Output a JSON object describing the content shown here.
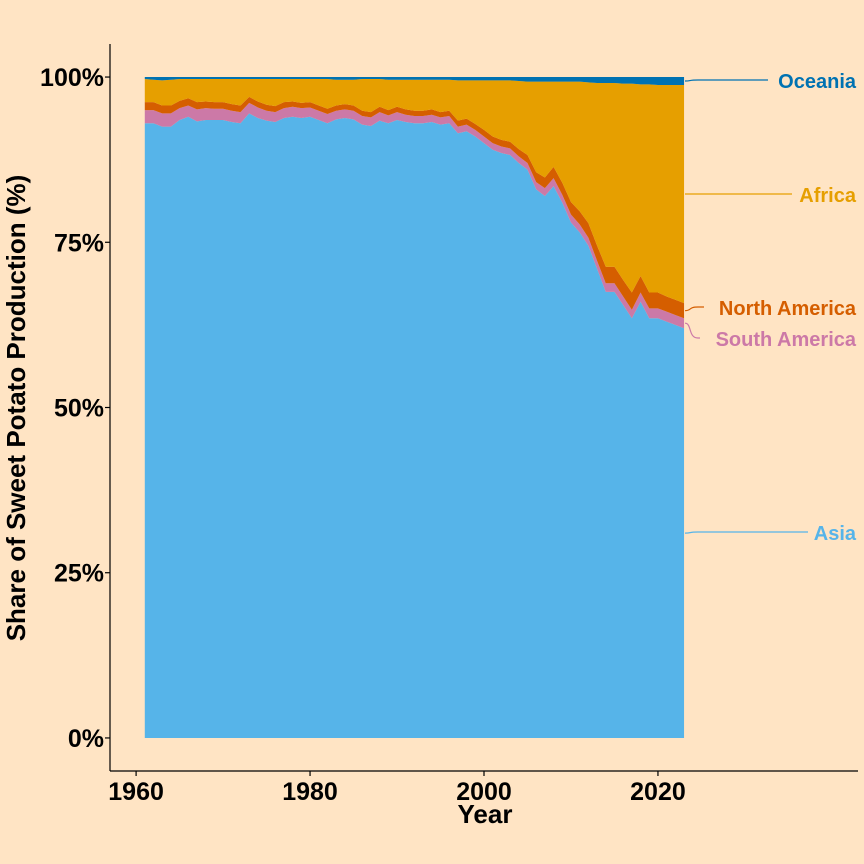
{
  "chart_data": {
    "type": "area",
    "stacked": true,
    "percent": true,
    "title": "",
    "xlabel": "Year",
    "ylabel": "Share of Sweet Potato Production (%)",
    "xlim": [
      1957,
      2043
    ],
    "ylim": [
      -5,
      105
    ],
    "x_ticks": [
      1960,
      1980,
      2000,
      2020
    ],
    "y_ticks": [
      0,
      25,
      50,
      75,
      100
    ],
    "y_tick_labels": [
      "0%",
      "25%",
      "50%",
      "75%",
      "100%"
    ],
    "grid": false,
    "legend": "direct labels at right end of series",
    "x": [
      1961,
      1962,
      1963,
      1964,
      1965,
      1966,
      1967,
      1968,
      1969,
      1970,
      1971,
      1972,
      1973,
      1974,
      1975,
      1976,
      1977,
      1978,
      1979,
      1980,
      1981,
      1982,
      1983,
      1984,
      1985,
      1986,
      1987,
      1988,
      1989,
      1990,
      1991,
      1992,
      1993,
      1994,
      1995,
      1996,
      1997,
      1998,
      1999,
      2000,
      2001,
      2002,
      2003,
      2004,
      2005,
      2006,
      2007,
      2008,
      2009,
      2010,
      2011,
      2012,
      2013,
      2014,
      2015,
      2016,
      2017,
      2018,
      2019,
      2020,
      2021,
      2022,
      2023
    ],
    "series": [
      {
        "name": "Asia",
        "color": "#56B4E9",
        "values": [
          93.0,
          93.0,
          92.5,
          92.5,
          93.5,
          94.0,
          93.3,
          93.5,
          93.5,
          93.5,
          93.2,
          93.0,
          94.5,
          93.8,
          93.4,
          93.2,
          93.8,
          94.0,
          93.8,
          94.0,
          93.5,
          93.0,
          93.6,
          93.8,
          93.6,
          92.8,
          92.6,
          93.4,
          93.0,
          93.5,
          93.2,
          93.0,
          93.0,
          93.2,
          92.8,
          93.0,
          91.5,
          91.8,
          91.0,
          90.0,
          89.0,
          88.5,
          88.2,
          87.0,
          86.0,
          83.0,
          82.0,
          83.5,
          81.0,
          78.0,
          76.5,
          74.5,
          71.0,
          67.5,
          67.5,
          65.5,
          63.5,
          66.0,
          63.5,
          63.5,
          63.0,
          62.5,
          62.0
        ]
      },
      {
        "name": "South America",
        "color": "#CC79A7",
        "values": [
          2.0,
          2.0,
          2.0,
          2.0,
          1.8,
          1.7,
          1.8,
          1.8,
          1.7,
          1.7,
          1.7,
          1.7,
          1.6,
          1.6,
          1.5,
          1.5,
          1.5,
          1.5,
          1.5,
          1.4,
          1.4,
          1.4,
          1.3,
          1.3,
          1.3,
          1.3,
          1.3,
          1.3,
          1.2,
          1.2,
          1.1,
          1.1,
          1.1,
          1.1,
          1.1,
          1.1,
          1.0,
          1.0,
          1.0,
          1.0,
          1.0,
          1.0,
          1.0,
          1.0,
          1.0,
          1.1,
          1.2,
          1.2,
          1.2,
          1.2,
          1.2,
          1.2,
          1.2,
          1.3,
          1.3,
          1.3,
          1.3,
          1.4,
          1.5,
          1.5,
          1.5,
          1.5,
          1.5
        ]
      },
      {
        "name": "North America",
        "color": "#D55E00",
        "values": [
          1.2,
          1.2,
          1.2,
          1.2,
          1.1,
          1.1,
          1.1,
          1.0,
          1.0,
          1.0,
          1.0,
          1.0,
          0.9,
          0.9,
          0.9,
          0.9,
          0.9,
          0.8,
          0.8,
          0.8,
          0.8,
          0.8,
          0.8,
          0.8,
          0.8,
          0.8,
          0.8,
          0.8,
          0.8,
          0.8,
          0.8,
          0.8,
          0.8,
          0.8,
          0.8,
          0.8,
          0.9,
          0.9,
          0.9,
          1.0,
          1.0,
          1.0,
          1.0,
          1.1,
          1.2,
          1.5,
          1.6,
          1.7,
          1.8,
          1.9,
          2.0,
          2.2,
          2.3,
          2.5,
          2.5,
          2.5,
          2.6,
          2.5,
          2.4,
          2.4,
          2.3,
          2.3,
          2.3
        ]
      },
      {
        "name": "Africa",
        "color": "#E69F00",
        "values": [
          3.5,
          3.4,
          3.8,
          3.9,
          3.3,
          2.9,
          3.5,
          3.4,
          3.5,
          3.5,
          3.8,
          4.0,
          2.7,
          3.4,
          3.9,
          4.1,
          3.5,
          3.4,
          3.6,
          3.5,
          4.0,
          4.5,
          3.9,
          3.7,
          3.9,
          4.8,
          5.0,
          4.2,
          4.6,
          4.1,
          4.5,
          4.7,
          4.7,
          4.5,
          4.9,
          4.7,
          6.1,
          5.8,
          6.6,
          7.5,
          8.5,
          9.0,
          9.3,
          10.3,
          11.1,
          13.7,
          14.5,
          12.9,
          15.3,
          18.2,
          19.6,
          21.3,
          24.6,
          27.8,
          27.8,
          29.7,
          31.6,
          29.0,
          31.5,
          31.4,
          32.0,
          32.5,
          33.0
        ]
      },
      {
        "name": "Oceania",
        "color": "#0072B2",
        "values": [
          0.3,
          0.4,
          0.5,
          0.4,
          0.3,
          0.3,
          0.3,
          0.3,
          0.3,
          0.3,
          0.3,
          0.3,
          0.3,
          0.3,
          0.3,
          0.3,
          0.3,
          0.3,
          0.3,
          0.3,
          0.3,
          0.3,
          0.4,
          0.4,
          0.4,
          0.3,
          0.3,
          0.3,
          0.4,
          0.4,
          0.4,
          0.4,
          0.4,
          0.4,
          0.4,
          0.4,
          0.5,
          0.5,
          0.5,
          0.5,
          0.5,
          0.5,
          0.5,
          0.6,
          0.7,
          0.7,
          0.7,
          0.7,
          0.7,
          0.7,
          0.7,
          0.8,
          0.9,
          0.9,
          0.9,
          1.0,
          1.0,
          1.1,
          1.1,
          1.2,
          1.2,
          1.2,
          1.2
        ]
      }
    ]
  }
}
